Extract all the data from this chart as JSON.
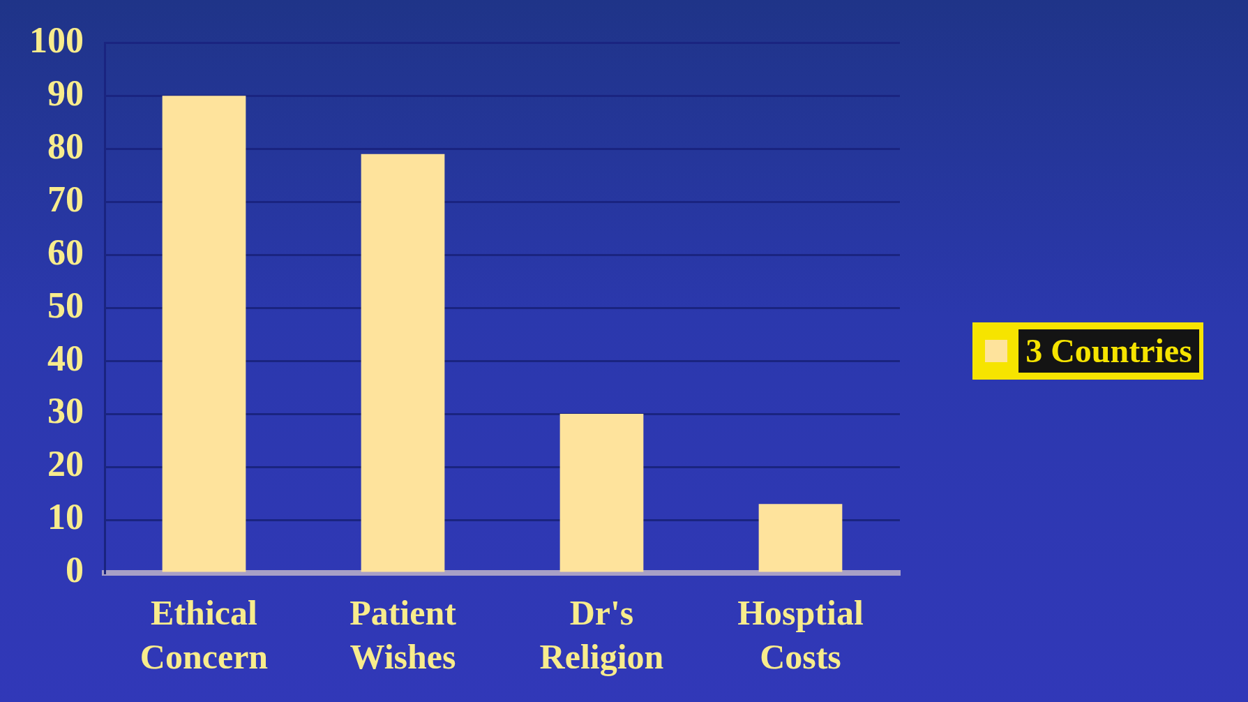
{
  "chart_data": {
    "type": "bar",
    "categories": [
      "Ethical Concern",
      "Patient Wishes",
      "Dr's Religion",
      "Hosptial Costs"
    ],
    "series": [
      {
        "name": "3 Countries",
        "color": "#fee39c",
        "values": [
          90,
          79,
          30,
          13
        ]
      }
    ],
    "ylim": [
      0,
      100
    ],
    "yticks": [
      0,
      10,
      20,
      30,
      40,
      50,
      60,
      70,
      80,
      90,
      100
    ],
    "grid": "y",
    "legend": "right"
  }
}
